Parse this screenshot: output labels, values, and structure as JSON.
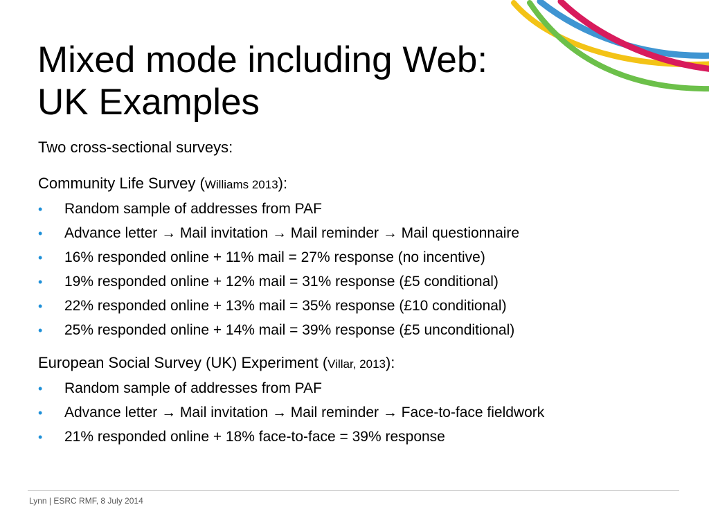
{
  "title": {
    "line1": "Mixed mode including Web:",
    "line2": "UK Examples"
  },
  "intro": "Two cross-sectional surveys:",
  "section1": {
    "heading_main": "Community Life Survey (",
    "heading_cite": "Williams 2013",
    "heading_end": "):",
    "bullets": [
      "Random sample of addresses from PAF",
      "Advance letter → Mail invitation → Mail reminder → Mail questionnaire",
      "16% responded online + 11% mail = 27% response (no incentive)",
      "19% responded online + 12% mail = 31% response (£5 conditional)",
      "22% responded online + 13% mail = 35% response (£10 conditional)",
      "25% responded online + 14% mail = 39% response (£5 unconditional)"
    ]
  },
  "section2": {
    "heading_main": "European Social Survey (UK) Experiment (",
    "heading_cite": "Villar, 2013",
    "heading_end": "):",
    "bullets": [
      "Random sample of addresses from PAF",
      "Advance letter → Mail invitation → Mail reminder → Face-to-face fieldwork",
      "21% responded online + 18% face-to-face = 39% response"
    ]
  },
  "bullet_glyph": "•",
  "footer": "Lynn | ESRC RMF, 8 July 2014",
  "colors": {
    "bullet": "#1e90d8",
    "swoosh_yellow": "#f3c316",
    "swoosh_blue": "#3f95d2",
    "swoosh_magenta": "#d81b5c",
    "swoosh_green": "#6cc04a"
  },
  "decoration": "swoosh-logo"
}
